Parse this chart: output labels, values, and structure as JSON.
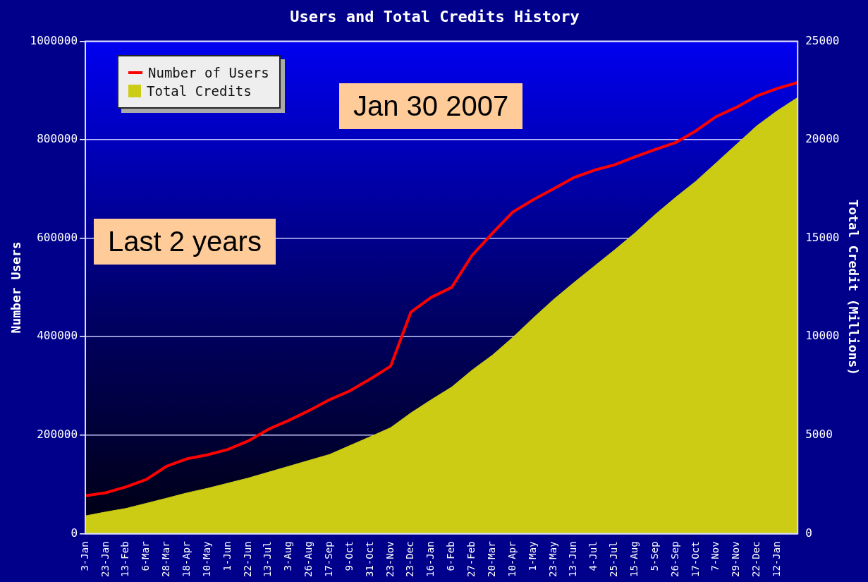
{
  "chart_data": {
    "type": "line",
    "title": "Users and Total Credits History",
    "ylabel": "Number Users",
    "y2label": "Total Credit (Millions)",
    "categories": [
      "3-Jan",
      "23-Jan",
      "13-Feb",
      "6-Mar",
      "28-Mar",
      "18-Apr",
      "10-May",
      "1-Jun",
      "22-Jun",
      "13-Jul",
      "3-Aug",
      "26-Aug",
      "17-Sep",
      "9-Oct",
      "31-Oct",
      "23-Nov",
      "23-Dec",
      "16-Jan",
      "6-Feb",
      "27-Feb",
      "20-Mar",
      "10-Apr",
      "1-May",
      "23-May",
      "13-Jun",
      "4-Jul",
      "25-Jul",
      "15-Aug",
      "5-Sep",
      "26-Sep",
      "17-Oct",
      "7-Nov",
      "29-Nov",
      "22-Dec",
      "12-Jan",
      null
    ],
    "series": [
      {
        "name": "Number of Users",
        "type": "line",
        "color": "#ff0000",
        "values": [
          77000,
          83000,
          95000,
          110000,
          137000,
          152000,
          160000,
          171000,
          188000,
          212000,
          230000,
          250000,
          272000,
          290000,
          314000,
          340000,
          450000,
          480000,
          500000,
          565000,
          610000,
          653000,
          678000,
          700000,
          723000,
          738000,
          749000,
          765000,
          780000,
          794000,
          818000,
          847000,
          866000,
          889000,
          904000,
          916000
        ]
      },
      {
        "name": "Total Credits",
        "type": "area",
        "axis": "y2",
        "color": "#cccc14",
        "values": [
          900,
          1100,
          1280,
          1540,
          1800,
          2070,
          2300,
          2560,
          2820,
          3120,
          3420,
          3720,
          4020,
          4470,
          4920,
          5380,
          6130,
          6800,
          7440,
          8300,
          9060,
          9960,
          10940,
          11880,
          12740,
          13570,
          14400,
          15260,
          16200,
          17070,
          17890,
          18830,
          19770,
          20710,
          21470,
          22140
        ]
      }
    ],
    "ylim": [
      0,
      1000000
    ],
    "yticks": [
      0,
      200000,
      400000,
      600000,
      800000,
      1000000
    ],
    "y2lim": [
      0,
      25000
    ],
    "y2ticks": [
      0,
      5000,
      10000,
      15000,
      20000,
      25000
    ],
    "grid": "y",
    "legend": "top left",
    "marker": "none",
    "annotations": [
      "Jan 30  2007",
      "Last 2 years"
    ]
  }
}
